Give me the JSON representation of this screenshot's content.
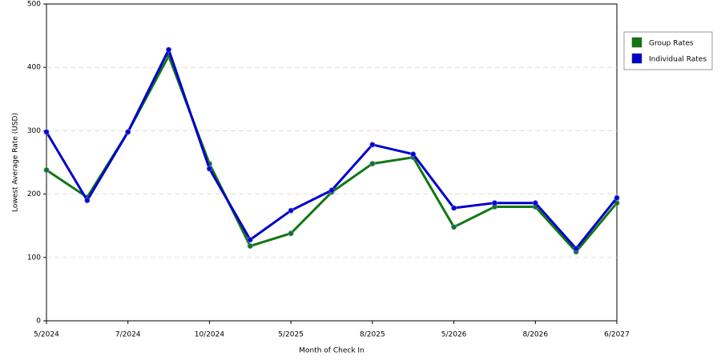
{
  "chart_data": {
    "type": "line",
    "x_label": "Month of Check In",
    "y_label": "Lowest Average Rate (USD)",
    "categories": [
      "5/2024",
      null,
      "7/2024",
      null,
      "10/2024",
      null,
      "5/2025",
      null,
      "8/2025",
      null,
      "5/2026",
      null,
      "8/2026",
      null,
      "6/2027"
    ],
    "series": [
      {
        "name": "Group Rates",
        "color": "#117711",
        "values": [
          238,
          195,
          298,
          418,
          248,
          118,
          138,
          203,
          248,
          258,
          148,
          180,
          180,
          109,
          186
        ]
      },
      {
        "name": "Individual Rates",
        "color": "#0000cc",
        "values": [
          298,
          190,
          298,
          428,
          240,
          128,
          174,
          206,
          278,
          263,
          178,
          186,
          186,
          114,
          194
        ]
      }
    ],
    "ylim": [
      0,
      500
    ],
    "yticks": [
      0,
      100,
      200,
      300,
      400,
      500
    ],
    "grid": true,
    "legend": "right"
  }
}
